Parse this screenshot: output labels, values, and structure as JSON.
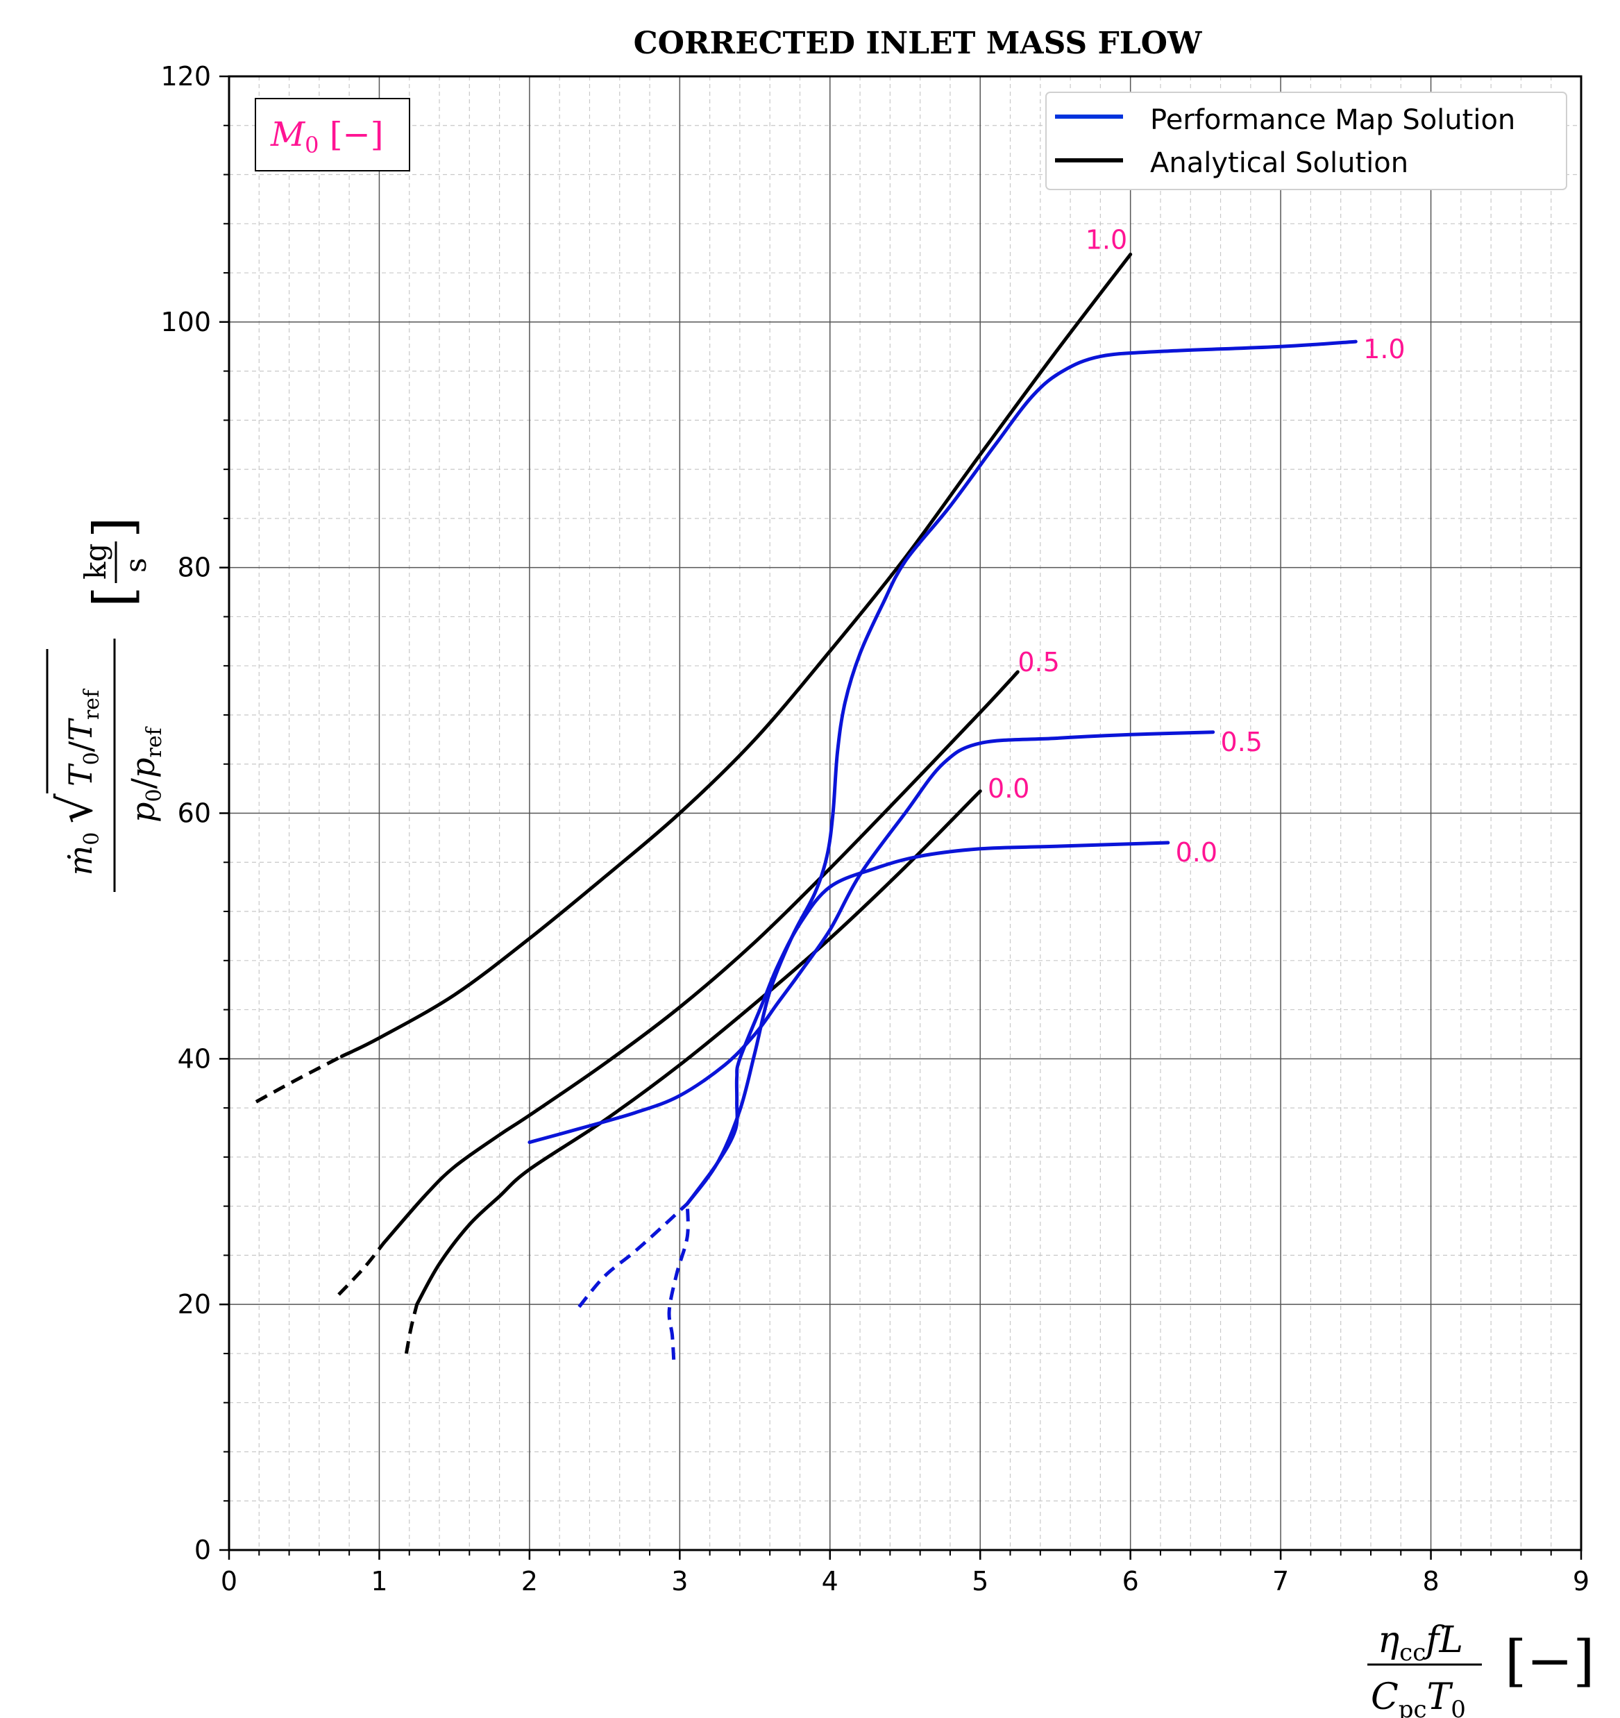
{
  "chart_data": {
    "type": "line",
    "title": "CORRECTED INLET MASS FLOW",
    "xlim": [
      0,
      9
    ],
    "ylim": [
      0,
      120
    ],
    "x_ticks": [
      "0",
      "1",
      "2",
      "3",
      "4",
      "5",
      "6",
      "7",
      "8",
      "9"
    ],
    "y_ticks": [
      "0",
      "20",
      "40",
      "60",
      "80",
      "100",
      "120"
    ],
    "x_tick_values": [
      0,
      1,
      2,
      3,
      4,
      5,
      6,
      7,
      8,
      9
    ],
    "y_tick_values": [
      0,
      20,
      40,
      60,
      80,
      100,
      120
    ],
    "grid": true,
    "legend_position": "upper-right",
    "legend": [
      {
        "label": "Performance Map Solution",
        "color": "#0033dd"
      },
      {
        "label": "Analytical Solution",
        "color": "#000000"
      }
    ],
    "param_box": "M₀ [−]",
    "colors": {
      "blue": "#0a14d8",
      "black": "#000000",
      "label": "#ff1493",
      "legend_blue": "#0033dd"
    },
    "series": [
      {
        "group": "analytical",
        "param": "1.0",
        "solid": [
          [
            0.75,
            40.2
          ],
          [
            1.0,
            41.7
          ],
          [
            1.5,
            45.2
          ],
          [
            2.0,
            49.8
          ],
          [
            2.5,
            54.8
          ],
          [
            3.0,
            60.0
          ],
          [
            3.5,
            66.0
          ],
          [
            4.0,
            73.2
          ],
          [
            4.5,
            80.8
          ],
          [
            5.0,
            89.2
          ],
          [
            5.5,
            97.5
          ],
          [
            6.0,
            105.5
          ]
        ],
        "dashed": [
          [
            0.18,
            36.5
          ],
          [
            0.45,
            38.3
          ],
          [
            0.75,
            40.2
          ]
        ]
      },
      {
        "group": "analytical",
        "param": "0.5",
        "solid": [
          [
            1.03,
            25.0
          ],
          [
            1.3,
            28.8
          ],
          [
            1.5,
            31.2
          ],
          [
            1.8,
            33.8
          ],
          [
            2.0,
            35.4
          ],
          [
            2.5,
            39.6
          ],
          [
            3.0,
            44.2
          ],
          [
            3.5,
            49.5
          ],
          [
            4.0,
            55.5
          ],
          [
            4.5,
            61.8
          ],
          [
            5.0,
            68.2
          ],
          [
            5.25,
            71.5
          ]
        ],
        "dashed": [
          [
            0.73,
            20.8
          ],
          [
            0.9,
            23.0
          ],
          [
            1.03,
            25.0
          ]
        ]
      },
      {
        "group": "analytical",
        "param": "0.0",
        "solid": [
          [
            1.25,
            20.0
          ],
          [
            1.4,
            23.3
          ],
          [
            1.6,
            26.5
          ],
          [
            1.8,
            28.8
          ],
          [
            2.0,
            31.0
          ],
          [
            2.5,
            35.0
          ],
          [
            3.0,
            39.5
          ],
          [
            3.5,
            44.5
          ],
          [
            4.0,
            49.8
          ],
          [
            4.5,
            55.6
          ],
          [
            5.0,
            61.8
          ]
        ],
        "dashed": [
          [
            1.18,
            16.0
          ],
          [
            1.21,
            18.0
          ],
          [
            1.25,
            20.0
          ]
        ]
      },
      {
        "group": "map",
        "param": "1.0",
        "solid": [
          [
            3.05,
            28.2
          ],
          [
            3.25,
            31.5
          ],
          [
            3.4,
            35.8
          ],
          [
            3.5,
            40.5
          ],
          [
            3.6,
            45.5
          ],
          [
            3.75,
            50.0
          ],
          [
            3.9,
            53.5
          ],
          [
            3.98,
            56.5
          ],
          [
            4.02,
            60.0
          ],
          [
            4.05,
            65.0
          ],
          [
            4.1,
            69.0
          ],
          [
            4.2,
            73.0
          ],
          [
            4.35,
            77.0
          ],
          [
            4.5,
            80.5
          ],
          [
            4.8,
            85.0
          ],
          [
            5.1,
            90.0
          ],
          [
            5.35,
            94.0
          ],
          [
            5.55,
            96.0
          ],
          [
            5.8,
            97.2
          ],
          [
            6.2,
            97.6
          ],
          [
            7.0,
            98.0
          ],
          [
            7.5,
            98.4
          ]
        ],
        "dashed": [
          [
            2.96,
            15.5
          ],
          [
            2.95,
            17.5
          ],
          [
            2.93,
            19.5
          ],
          [
            2.98,
            22.5
          ],
          [
            3.05,
            25.5
          ],
          [
            3.05,
            28.2
          ]
        ]
      },
      {
        "group": "map",
        "param": "0.5",
        "solid": [
          [
            2.0,
            33.2
          ],
          [
            2.3,
            34.2
          ],
          [
            2.7,
            35.6
          ],
          [
            3.0,
            37.0
          ],
          [
            3.3,
            39.5
          ],
          [
            3.5,
            42.0
          ],
          [
            3.65,
            44.5
          ],
          [
            3.8,
            47.0
          ],
          [
            4.0,
            50.5
          ],
          [
            4.2,
            55.0
          ],
          [
            4.5,
            60.0
          ],
          [
            4.75,
            64.0
          ],
          [
            5.0,
            65.7
          ],
          [
            5.5,
            66.1
          ],
          [
            6.0,
            66.4
          ],
          [
            6.55,
            66.6
          ]
        ],
        "dashed": [
          [
            2.33,
            19.8
          ],
          [
            2.5,
            22.3
          ],
          [
            2.7,
            24.3
          ],
          [
            2.9,
            26.5
          ],
          [
            3.05,
            28.2
          ]
        ]
      },
      {
        "group": "map",
        "param": "0.0",
        "solid": [
          [
            3.05,
            28.2
          ],
          [
            3.25,
            31.5
          ],
          [
            3.37,
            34.2
          ],
          [
            3.38,
            36.5
          ],
          [
            3.38,
            38.5
          ],
          [
            3.4,
            40.0
          ],
          [
            3.55,
            44.5
          ],
          [
            3.65,
            47.5
          ],
          [
            3.8,
            51.0
          ],
          [
            4.0,
            54.0
          ],
          [
            4.3,
            55.5
          ],
          [
            4.6,
            56.5
          ],
          [
            5.0,
            57.1
          ],
          [
            5.5,
            57.3
          ],
          [
            6.25,
            57.6
          ]
        ]
      }
    ],
    "curve_labels": [
      {
        "text": "1.0",
        "x": 5.7,
        "y": 106.7
      },
      {
        "text": "1.0",
        "x": 7.55,
        "y": 97.8
      },
      {
        "text": "0.5",
        "x": 5.25,
        "y": 72.3
      },
      {
        "text": "0.5",
        "x": 6.6,
        "y": 65.8
      },
      {
        "text": "0.0",
        "x": 5.05,
        "y": 62.0
      },
      {
        "text": "0.0",
        "x": 6.3,
        "y": 56.8
      }
    ]
  }
}
